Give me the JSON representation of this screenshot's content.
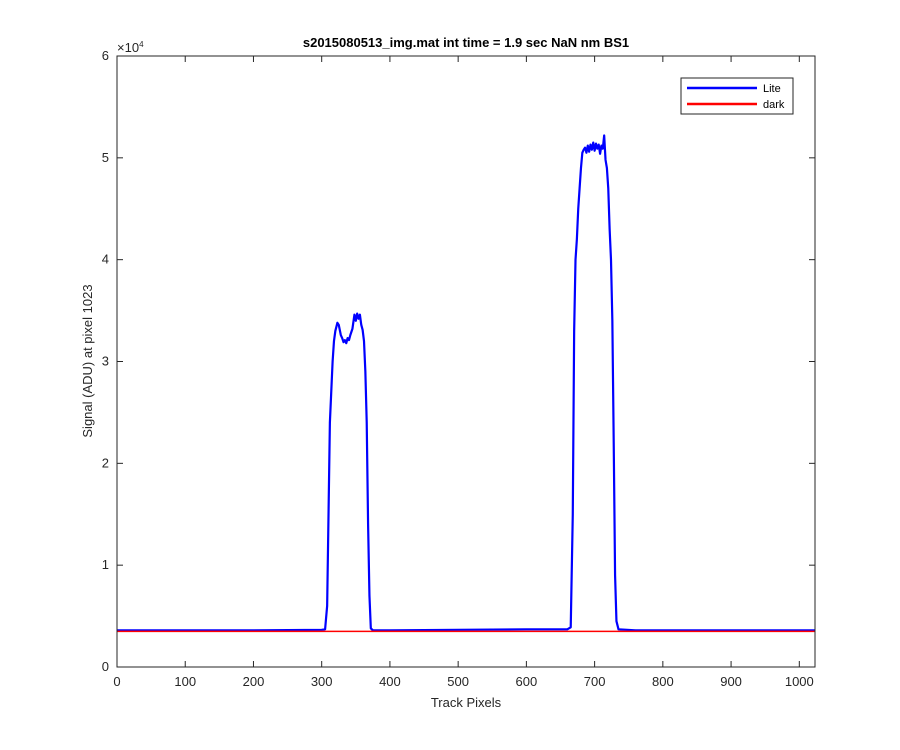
{
  "chart_data": {
    "type": "line",
    "title": "s2015080513_img.mat int time = 1.9 sec  NaN nm BS1",
    "xlabel": "Track Pixels",
    "ylabel": "Signal (ADU) at pixel 1023",
    "y_exponent_label": "×10",
    "y_exponent": "4",
    "xlim": [
      0,
      1023
    ],
    "ylim": [
      0,
      60000
    ],
    "xticks": [
      0,
      100,
      200,
      300,
      400,
      500,
      600,
      700,
      800,
      900,
      1000
    ],
    "xtick_labels": [
      "0",
      "100",
      "200",
      "300",
      "400",
      "500",
      "600",
      "700",
      "800",
      "900",
      "1000"
    ],
    "yticks": [
      0,
      10000,
      20000,
      30000,
      40000,
      50000,
      60000
    ],
    "ytick_labels": [
      "0",
      "1",
      "2",
      "3",
      "4",
      "5",
      "6"
    ],
    "grid": false,
    "legend_position": "top-right",
    "series": [
      {
        "name": "Lite",
        "color": "#0000ff",
        "x": [
          0,
          100,
          200,
          300,
          305,
          308,
          310,
          312,
          314,
          316,
          318,
          320,
          323,
          325,
          328,
          330,
          332,
          334,
          336,
          338,
          340,
          342,
          345,
          348,
          350,
          352,
          354,
          356,
          358,
          360,
          362,
          364,
          366,
          368,
          370,
          372,
          375,
          400,
          500,
          600,
          660,
          665,
          668,
          670,
          672,
          674,
          676,
          678,
          680,
          682,
          684,
          686,
          688,
          690,
          692,
          694,
          696,
          698,
          700,
          702,
          704,
          706,
          708,
          710,
          712,
          714,
          716,
          718,
          720,
          722,
          724,
          726,
          728,
          730,
          732,
          735,
          760,
          800,
          900,
          1000,
          1023
        ],
        "y": [
          3600,
          3600,
          3600,
          3650,
          3700,
          6000,
          15000,
          24000,
          27000,
          30000,
          32000,
          33000,
          33800,
          33600,
          32600,
          32300,
          31900,
          32100,
          31800,
          32300,
          32100,
          32600,
          33200,
          34600,
          34000,
          34700,
          34200,
          34600,
          33600,
          33100,
          32000,
          29000,
          24000,
          14000,
          7000,
          3800,
          3600,
          3600,
          3650,
          3700,
          3700,
          3900,
          15000,
          33000,
          40000,
          42000,
          45000,
          47000,
          49000,
          50500,
          50800,
          51000,
          50500,
          51200,
          50600,
          51300,
          50800,
          51500,
          50700,
          51400,
          50900,
          51300,
          50400,
          51200,
          50900,
          52200,
          49800,
          49000,
          47000,
          43000,
          40000,
          34000,
          22000,
          9000,
          4500,
          3700,
          3600,
          3600,
          3600,
          3600,
          3600
        ]
      },
      {
        "name": "dark",
        "color": "#ff0000",
        "x": [
          0,
          1023
        ],
        "y": [
          3500,
          3500
        ]
      }
    ]
  }
}
